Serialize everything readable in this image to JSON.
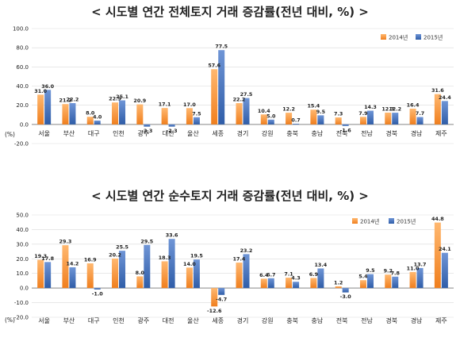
{
  "colors": {
    "series_2014_top": "#ffb870",
    "series_2014_bottom": "#f07f1e",
    "series_2015_top": "#6f95d6",
    "series_2015_bottom": "#2f5da8",
    "grid": "#d9d9d9",
    "axis": "#888888"
  },
  "chart_data": [
    {
      "type": "bar",
      "title": "< 시도별 연간 전체토지 거래 증감률(전년 대비, %) >",
      "unit_label": "(%)",
      "categories": [
        "서울",
        "부산",
        "대구",
        "인천",
        "광주",
        "대전",
        "울산",
        "세종",
        "경기",
        "강원",
        "충북",
        "충남",
        "전북",
        "전남",
        "경북",
        "경남",
        "제주"
      ],
      "series": [
        {
          "name": "2014년",
          "values": [
            31.0,
            21.2,
            8.0,
            22.9,
            20.9,
            17.1,
            17.0,
            57.6,
            22.2,
            10.4,
            12.2,
            15.4,
            7.3,
            7.9,
            12.3,
            16.4,
            31.6
          ]
        },
        {
          "name": "2015년",
          "values": [
            36.0,
            22.2,
            4.0,
            25.1,
            -2.3,
            -2.3,
            7.5,
            77.5,
            27.5,
            5.0,
            0.7,
            9.5,
            -1.6,
            14.3,
            12.2,
            7.7,
            24.4
          ]
        }
      ],
      "labels": [
        [
          "31.0",
          "21.2",
          "8.0",
          "22.9",
          "20.9",
          "17.1",
          "17.0",
          "57.6",
          "22.2",
          "10.4",
          "12.2",
          "15.4",
          "7.3",
          "7.9",
          "12.3",
          "16.4",
          "31.6"
        ],
        [
          "36.0",
          "22.2",
          "4.0",
          "25.1",
          "-2.3",
          "-2.3",
          "7.5",
          "77.5",
          "27.5",
          "5.0",
          "0.7",
          "9.5",
          "-1.6",
          "14.3",
          "12.2",
          "7.7",
          "24.4"
        ]
      ],
      "yticks": [
        "100.0",
        "80.0",
        "60.0",
        "40.0",
        "20.0",
        "0.0",
        "-20.0"
      ],
      "ylim": [
        -20,
        100
      ],
      "grid": true,
      "legend_position": "top-right"
    },
    {
      "type": "bar",
      "title": "< 시도별 연간 순수토지 거래 증감률(전년 대비, %) >",
      "unit_label": "(%)",
      "categories": [
        "서울",
        "부산",
        "대구",
        "인천",
        "광주",
        "대전",
        "울산",
        "세종",
        "경기",
        "강원",
        "충북",
        "충남",
        "전북",
        "전남",
        "경북",
        "경남",
        "제주"
      ],
      "series": [
        {
          "name": "2014년",
          "values": [
            19.3,
            29.3,
            16.9,
            20.2,
            8.0,
            18.3,
            14.0,
            -12.6,
            17.4,
            6.4,
            7.1,
            6.9,
            1.2,
            5.4,
            9.2,
            11.0,
            44.8
          ]
        },
        {
          "name": "2015년",
          "values": [
            17.8,
            14.2,
            -1.0,
            25.5,
            29.5,
            33.6,
            19.5,
            -4.7,
            23.2,
            6.7,
            4.3,
            13.4,
            -3.0,
            9.5,
            7.8,
            13.7,
            24.1
          ]
        }
      ],
      "labels": [
        [
          "19.3",
          "29.3",
          "16.9",
          "20.2",
          "8.0",
          "18.3",
          "14.0",
          "-12.6",
          "17.4",
          "6.4",
          "7.1",
          "6.9",
          "1.2",
          "5.4",
          "9.2",
          "11.0",
          "44.8"
        ],
        [
          "17.8",
          "14.2",
          "-1.0",
          "25.5",
          "29.5",
          "33.6",
          "19.5",
          "-4.7",
          "23.2",
          "6.7",
          "4.3",
          "13.4",
          "-3.0",
          "9.5",
          "7.8",
          "13.7",
          "24.1"
        ]
      ],
      "yticks": [
        "50.0",
        "40.0",
        "30.0",
        "20.0",
        "10.0",
        "0.0",
        "-10.0",
        "-20.0"
      ],
      "ylim": [
        -20,
        50
      ],
      "grid": true,
      "legend_position": "top-right"
    }
  ]
}
